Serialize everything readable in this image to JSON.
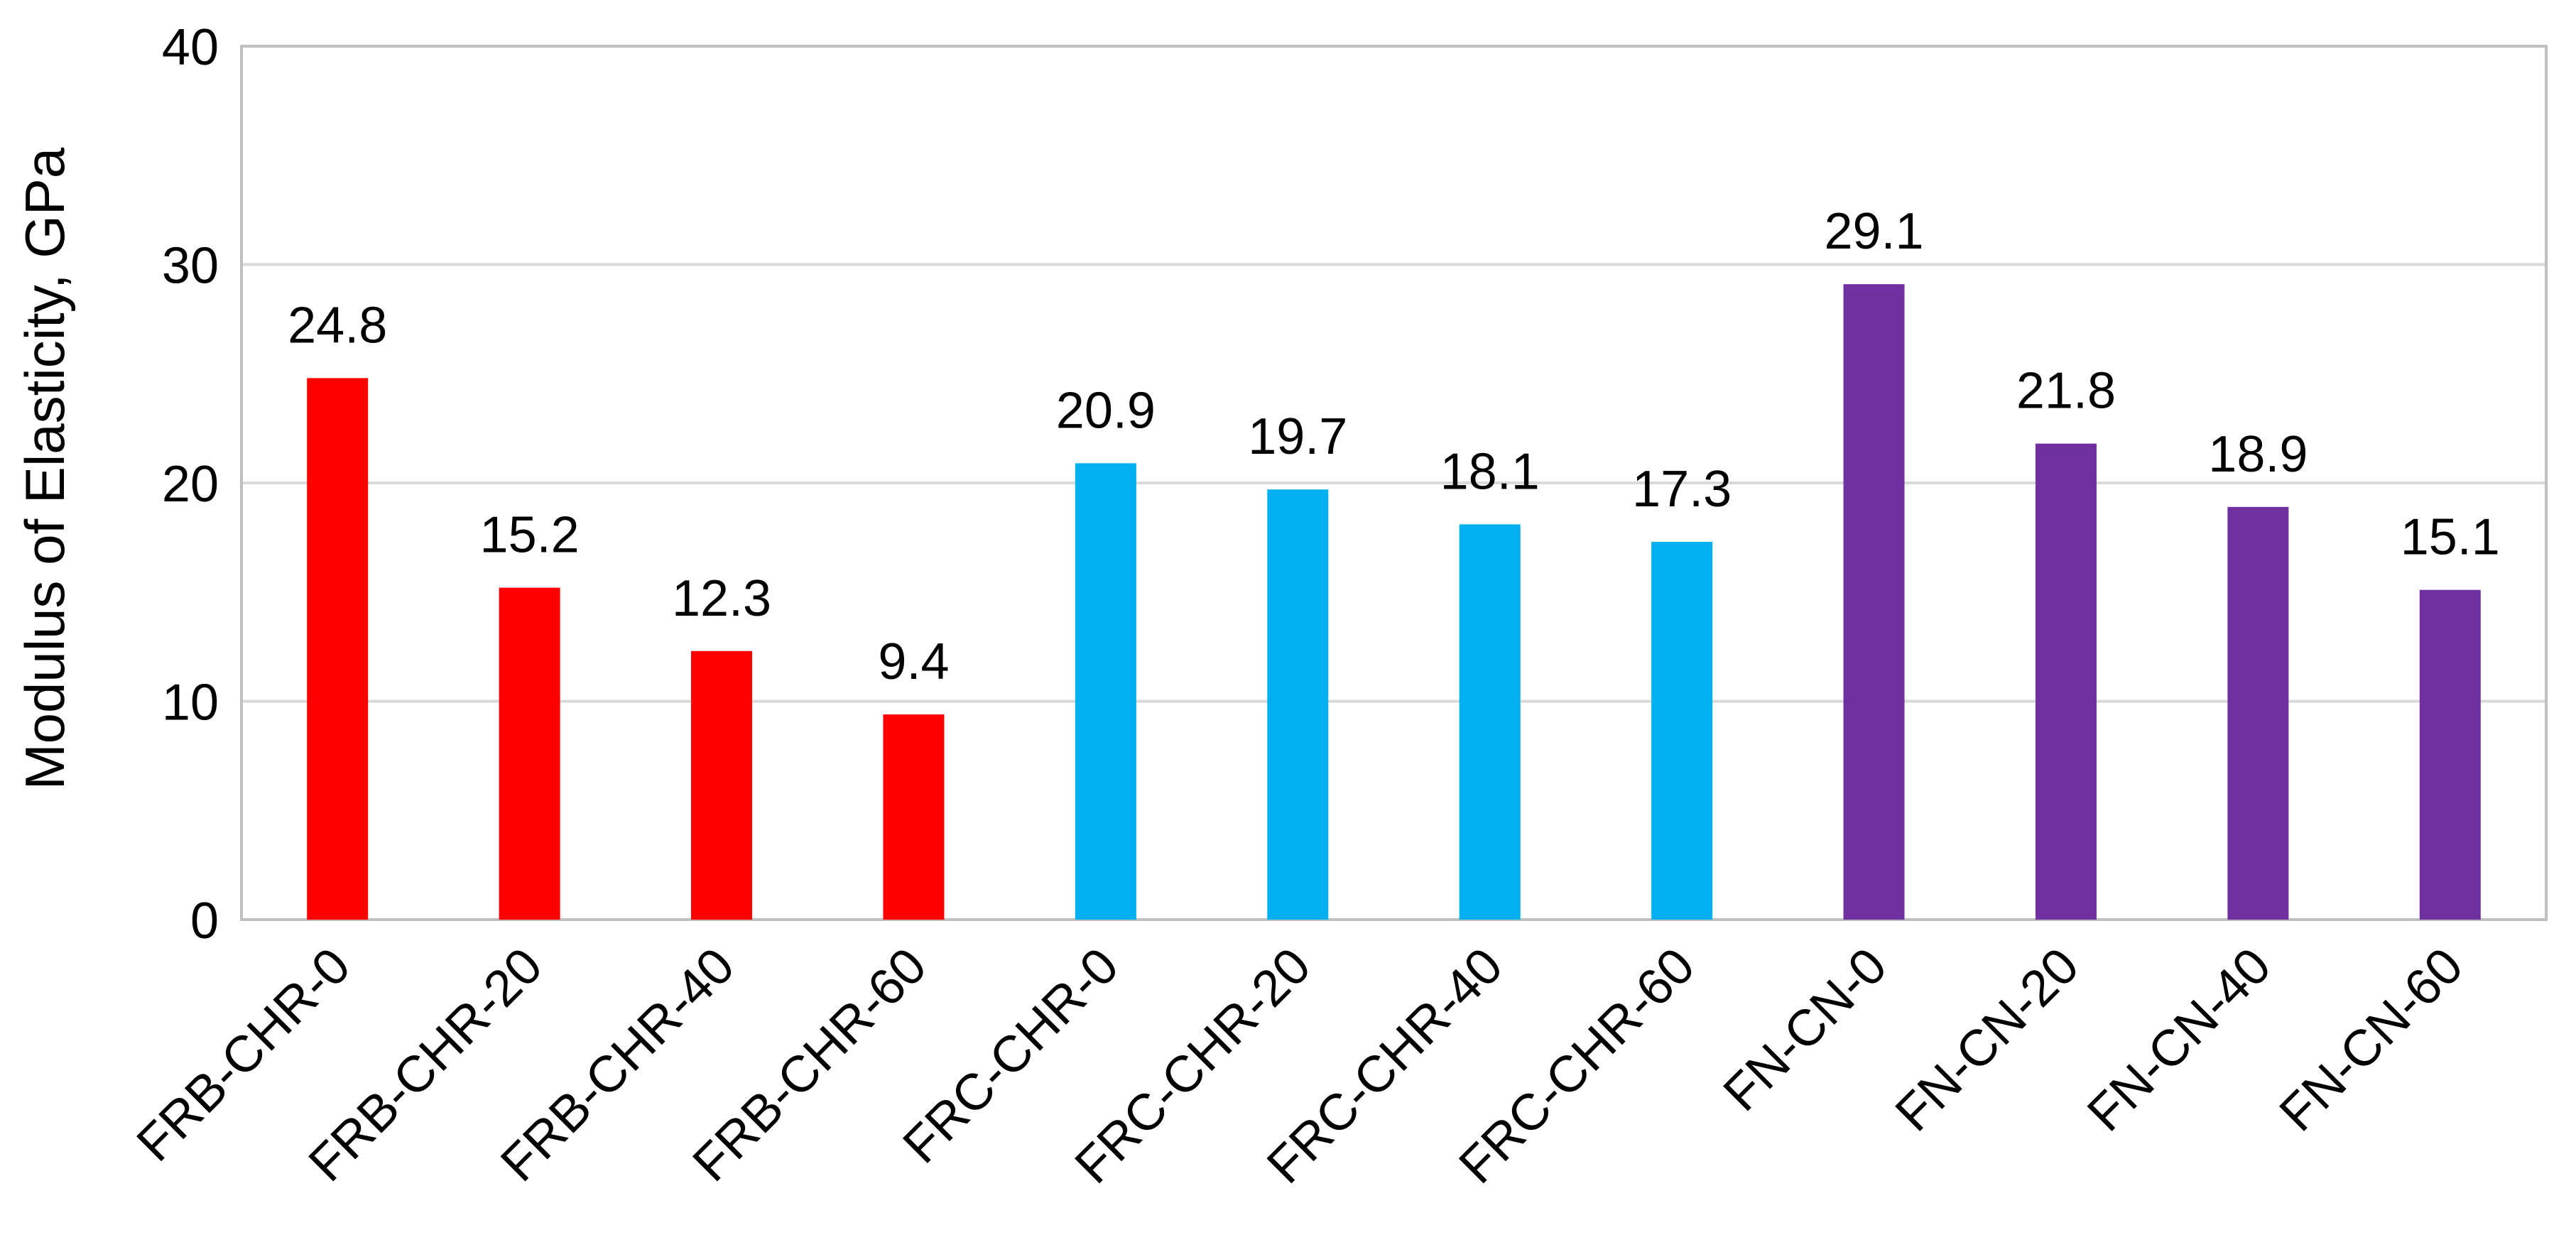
{
  "chart_data": {
    "type": "bar",
    "title": "",
    "xlabel": "",
    "ylabel": "Modulus of Elasticity, GPa",
    "ylim": [
      0,
      40
    ],
    "yticks": [
      0,
      10,
      20,
      30,
      40
    ],
    "grid": true,
    "categories": [
      "FRB-CHR-0",
      "FRB-CHR-20",
      "FRB-CHR-40",
      "FRB-CHR-60",
      "FRC-CHR-0",
      "FRC-CHR-20",
      "FRC-CHR-40",
      "FRC-CHR-60",
      "FN-CN-0",
      "FN-CN-20",
      "FN-CN-40",
      "FN-CN-60"
    ],
    "values": [
      24.8,
      15.2,
      12.3,
      9.4,
      20.9,
      19.7,
      18.1,
      17.3,
      29.1,
      21.8,
      18.9,
      15.1
    ],
    "value_labels": [
      "24.8",
      "15.2",
      "12.3",
      "9.4",
      "20.9",
      "19.7",
      "18.1",
      "17.3",
      "29.1",
      "21.8",
      "18.9",
      "15.1"
    ],
    "colors": [
      "#ff0000",
      "#ff0000",
      "#ff0000",
      "#ff0000",
      "#00b0f0",
      "#00b0f0",
      "#00b0f0",
      "#00b0f0",
      "#7030a0",
      "#7030a0",
      "#7030a0",
      "#7030a0"
    ],
    "grid_color": "#d9d9d9",
    "axis_color": "#bfbfbf"
  }
}
